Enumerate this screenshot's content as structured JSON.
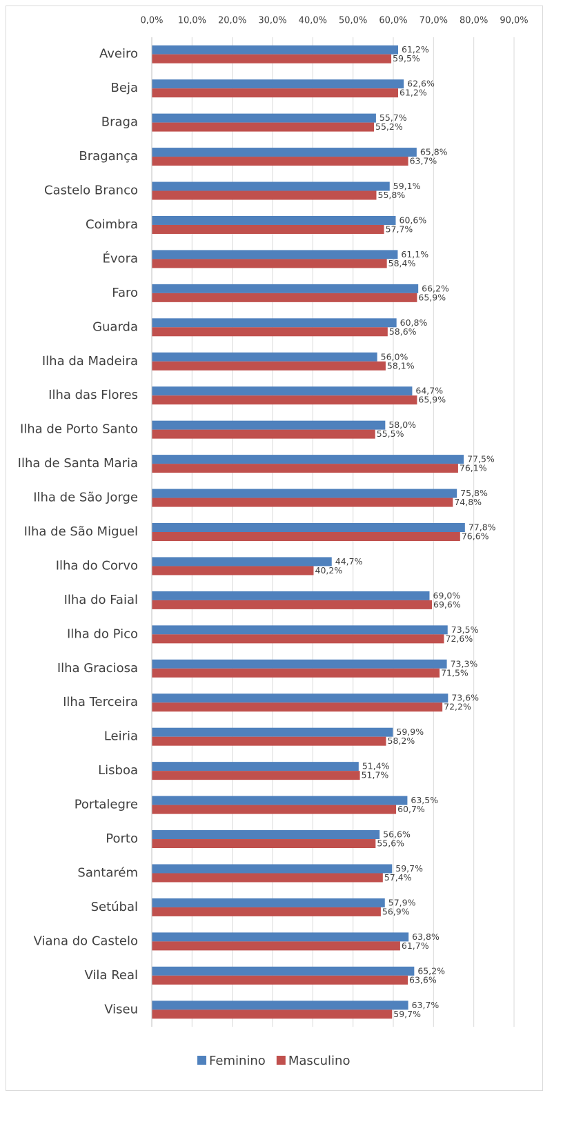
{
  "chart_data": {
    "type": "hbar",
    "categories": [
      "Aveiro",
      "Beja",
      "Braga",
      "Bragança",
      "Castelo Branco",
      "Coimbra",
      "Évora",
      "Faro",
      "Guarda",
      "Ilha da Madeira",
      "Ilha das Flores",
      "Ilha de Porto Santo",
      "Ilha de Santa Maria",
      "Ilha de São Jorge",
      "Ilha de São Miguel",
      "Ilha do Corvo",
      "Ilha do Faial",
      "Ilha do Pico",
      "Ilha Graciosa",
      "Ilha Terceira",
      "Leiria",
      "Lisboa",
      "Portalegre",
      "Porto",
      "Santarém",
      "Setúbal",
      "Viana do Castelo",
      "Vila Real",
      "Viseu"
    ],
    "series": [
      {
        "name": "Feminino",
        "color": "#4f81bd",
        "values": [
          61.2,
          62.6,
          55.7,
          65.8,
          59.1,
          60.6,
          61.1,
          66.2,
          60.8,
          56.0,
          64.7,
          58.0,
          77.5,
          75.8,
          77.8,
          44.7,
          69.0,
          73.5,
          73.3,
          73.6,
          59.9,
          51.4,
          63.5,
          56.6,
          59.7,
          57.9,
          63.8,
          65.2,
          63.7
        ],
        "value_labels": [
          "61,2%",
          "62,6%",
          "55,7%",
          "65,8%",
          "59,1%",
          "60,6%",
          "61,1%",
          "66,2%",
          "60,8%",
          "56,0%",
          "64,7%",
          "58,0%",
          "77,5%",
          "75,8%",
          "77,8%",
          "44,7%",
          "69,0%",
          "73,5%",
          "73,3%",
          "73,6%",
          "59,9%",
          "51,4%",
          "63,5%",
          "56,6%",
          "59,7%",
          "57,9%",
          "63,8%",
          "65,2%",
          "63,7%"
        ]
      },
      {
        "name": "Masculino",
        "color": "#c0504d",
        "values": [
          59.5,
          61.2,
          55.2,
          63.7,
          55.8,
          57.7,
          58.4,
          65.9,
          58.6,
          58.1,
          65.9,
          55.5,
          76.1,
          74.8,
          76.6,
          40.2,
          69.6,
          72.6,
          71.5,
          72.2,
          58.2,
          51.7,
          60.7,
          55.6,
          57.4,
          56.9,
          61.7,
          63.6,
          59.7
        ],
        "value_labels": [
          "59,5%",
          "61,2%",
          "55,2%",
          "63,7%",
          "55,8%",
          "57,7%",
          "58,4%",
          "65,9%",
          "58,6%",
          "58,1%",
          "65,9%",
          "55,5%",
          "76,1%",
          "74,8%",
          "76,6%",
          "40,2%",
          "69,6%",
          "72,6%",
          "71,5%",
          "72,2%",
          "58,2%",
          "51,7%",
          "60,7%",
          "55,6%",
          "57,4%",
          "56,9%",
          "61,7%",
          "63,6%",
          "59,7%"
        ]
      }
    ],
    "xlim": [
      0,
      90
    ],
    "xticks": [
      {
        "value": 0,
        "label": "0,0%"
      },
      {
        "value": 10,
        "label": "10,0%"
      },
      {
        "value": 20,
        "label": "20,0%"
      },
      {
        "value": 30,
        "label": "30,0%"
      },
      {
        "value": 40,
        "label": "40,0%"
      },
      {
        "value": 50,
        "label": "50,0%"
      },
      {
        "value": 60,
        "label": "60,0%"
      },
      {
        "value": 70,
        "label": "70,0%"
      },
      {
        "value": 80,
        "label": "80,0%"
      },
      {
        "value": 90,
        "label": "90,0%"
      }
    ],
    "grid": true,
    "legend": "bottom"
  }
}
